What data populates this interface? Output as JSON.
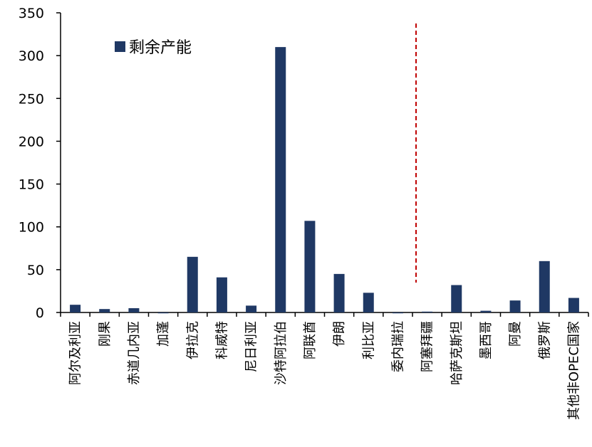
{
  "chart_data": {
    "type": "bar",
    "title": "",
    "xlabel": "",
    "ylabel": "",
    "ylim": [
      0,
      350
    ],
    "yticks": [
      0,
      50,
      100,
      150,
      200,
      250,
      300,
      350
    ],
    "grid": false,
    "legend": {
      "position": "top-left",
      "entries": [
        "剩余产能"
      ]
    },
    "categories": [
      "阿尔及利亚",
      "刚果",
      "赤道几内亚",
      "加蓬",
      "伊拉克",
      "科威特",
      "尼日利亚",
      "沙特阿拉伯",
      "阿联酋",
      "伊朗",
      "利比亚",
      "委内瑞拉",
      "阿塞拜疆",
      "哈萨克斯坦",
      "墨西哥",
      "阿曼",
      "俄罗斯",
      "其他非OPEC国家"
    ],
    "series": [
      {
        "name": "剩余产能",
        "color": "#1f3864",
        "values": [
          9,
          4,
          5,
          -1,
          65,
          41,
          8,
          310,
          107,
          45,
          23,
          -1,
          1,
          32,
          2,
          14,
          60,
          17
        ]
      }
    ],
    "divider": {
      "after_category": "委内瑞拉",
      "style": "dashed",
      "color": "#c00000"
    }
  }
}
